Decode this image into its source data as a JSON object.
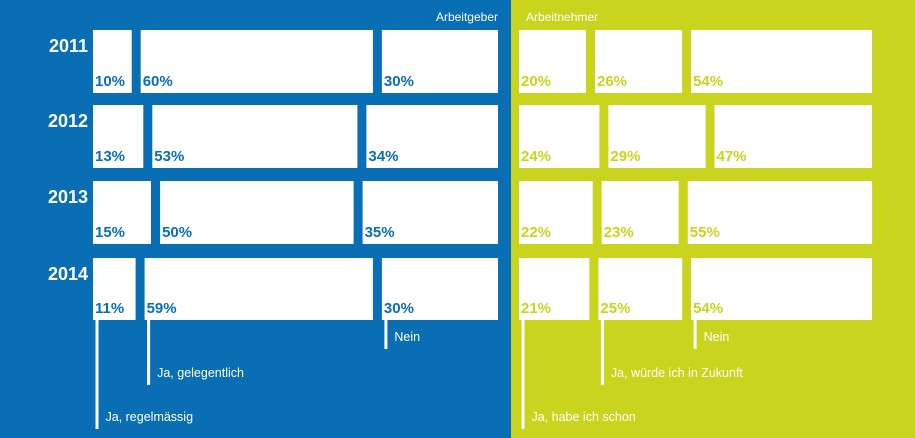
{
  "chart_data": {
    "type": "bar",
    "orientation": "horizontal-stacked-100",
    "categories": [
      "2011",
      "2012",
      "2013",
      "2014"
    ],
    "panels": [
      {
        "title": "Arbeitgeber",
        "background": "#0a6eb4",
        "label_color": "#0a6eb4",
        "series": [
          {
            "name": "Ja, regelmässig",
            "values": [
              10,
              13,
              15,
              11
            ]
          },
          {
            "name": "Ja, gelegentlich",
            "values": [
              60,
              53,
              50,
              59
            ]
          },
          {
            "name": "Nein",
            "values": [
              30,
              34,
              35,
              30
            ]
          }
        ]
      },
      {
        "title": "Arbeitnehmer",
        "background": "#c8d41e",
        "label_color": "#c8d41e",
        "series": [
          {
            "name": "Ja, habe ich schon",
            "values": [
              20,
              24,
              22,
              21
            ]
          },
          {
            "name": "Ja, würde ich in Zukunft",
            "values": [
              26,
              29,
              23,
              25
            ]
          },
          {
            "name": "Nein",
            "values": [
              54,
              47,
              55,
              54
            ]
          }
        ]
      }
    ],
    "value_suffix": "%",
    "grid": false,
    "legend": "bottom"
  }
}
